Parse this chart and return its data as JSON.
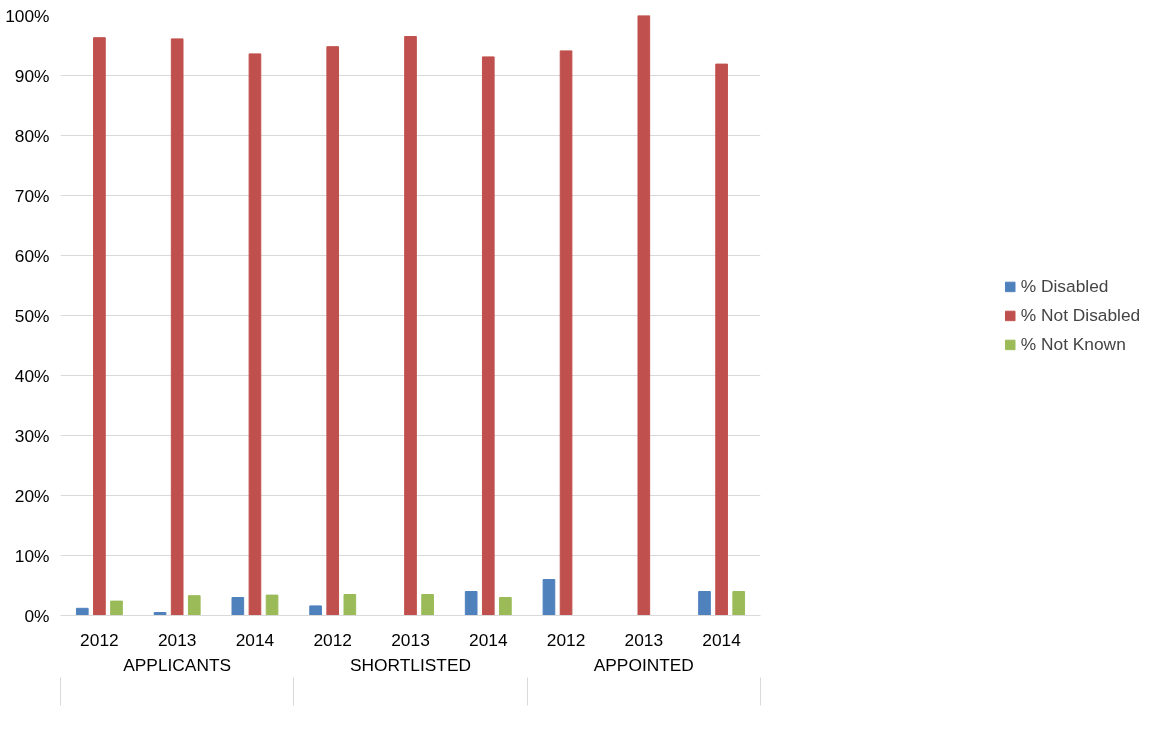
{
  "chart_data": {
    "type": "bar",
    "categories": [
      "2012",
      "2013",
      "2014",
      "2012",
      "2013",
      "2014",
      "2012",
      "2013",
      "2014"
    ],
    "annotations": [
      "APPLICANTS",
      "SHORTLISTED",
      "APPOINTED"
    ],
    "series": [
      {
        "name": "% Disabled",
        "color": "#4f81bd",
        "values": [
          1.2,
          0.5,
          3.0,
          1.6,
          0,
          4.0,
          6.0,
          0,
          4.0
        ]
      },
      {
        "name": "% Not Disabled",
        "color": "#c0504d",
        "values": [
          96.3,
          96.1,
          93.6,
          94.8,
          96.5,
          93.1,
          94.1,
          100,
          91.9
        ]
      },
      {
        "name": "% Not Known",
        "color": "#9bbb59",
        "values": [
          2.4,
          3.3,
          3.4,
          3.5,
          3.5,
          3.0,
          0,
          0,
          4.0
        ]
      }
    ],
    "ylim": [
      0,
      100
    ],
    "yticks": [
      {
        "value": 0,
        "label": "0%"
      },
      {
        "value": 10,
        "label": "10%"
      },
      {
        "value": 20,
        "label": "20%"
      },
      {
        "value": 30,
        "label": "30%"
      },
      {
        "value": 40,
        "label": "40%"
      },
      {
        "value": 50,
        "label": "50%"
      },
      {
        "value": 60,
        "label": "60%"
      },
      {
        "value": 70,
        "label": "70%"
      },
      {
        "value": 80,
        "label": "80%"
      },
      {
        "value": 90,
        "label": "90%"
      },
      {
        "value": 100,
        "label": "100%"
      }
    ],
    "grid": "y",
    "legend": "right"
  }
}
